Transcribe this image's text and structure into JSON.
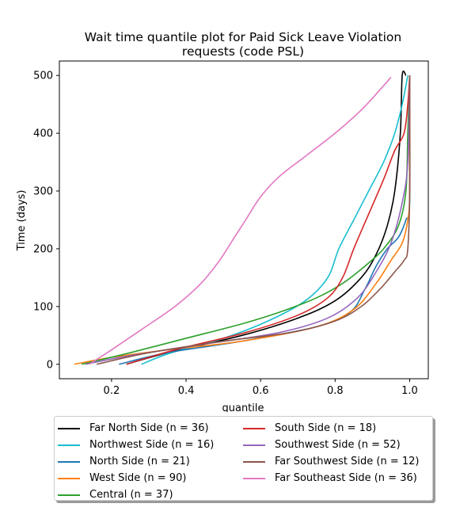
{
  "chart_data": {
    "type": "line",
    "title_line1": "Wait time quantile plot for Paid Sick Leave Violation",
    "title_line2": "requests (code PSL)",
    "xlabel": "quantile",
    "ylabel": "Time (days)",
    "xlim": [
      0.06,
      1.05
    ],
    "ylim": [
      -25,
      525
    ],
    "xticks": [
      0.2,
      0.4,
      0.6,
      0.8,
      1.0
    ],
    "xtick_labels": [
      "0.2",
      "0.4",
      "0.6",
      "0.8",
      "1.0"
    ],
    "yticks": [
      0,
      100,
      200,
      300,
      400,
      500
    ],
    "ytick_labels": [
      "0",
      "100",
      "200",
      "300",
      "400",
      "500"
    ],
    "grid": false,
    "legend_placement": "below plot, two columns",
    "series": [
      {
        "name": "Far North Side (n = 36)",
        "color": "#000000",
        "points": [
          [
            0.24,
            0
          ],
          [
            0.35,
            20
          ],
          [
            0.55,
            50
          ],
          [
            0.7,
            80
          ],
          [
            0.8,
            110
          ],
          [
            0.87,
            150
          ],
          [
            0.91,
            190
          ],
          [
            0.94,
            240
          ],
          [
            0.96,
            300
          ],
          [
            0.975,
            400
          ],
          [
            0.98,
            500
          ],
          [
            0.99,
            500
          ]
        ]
      },
      {
        "name": "Northwest Side (n = 16)",
        "color": "#17becf",
        "points": [
          [
            0.28,
            0
          ],
          [
            0.36,
            20
          ],
          [
            0.5,
            45
          ],
          [
            0.62,
            75
          ],
          [
            0.72,
            110
          ],
          [
            0.78,
            150
          ],
          [
            0.81,
            200
          ],
          [
            0.85,
            250
          ],
          [
            0.89,
            300
          ],
          [
            0.93,
            350
          ],
          [
            0.96,
            400
          ],
          [
            0.98,
            450
          ],
          [
            0.995,
            500
          ]
        ]
      },
      {
        "name": "North Side (n = 21)",
        "color": "#1f77b4",
        "points": [
          [
            0.22,
            0
          ],
          [
            0.35,
            20
          ],
          [
            0.55,
            40
          ],
          [
            0.75,
            65
          ],
          [
            0.84,
            90
          ],
          [
            0.88,
            130
          ],
          [
            0.91,
            170
          ],
          [
            0.94,
            200
          ],
          [
            0.97,
            220
          ],
          [
            0.99,
            250
          ],
          [
            1.0,
            280
          ],
          [
            1.0,
            500
          ]
        ]
      },
      {
        "name": "West Side (n = 90)",
        "color": "#ff7f0e",
        "points": [
          [
            0.1,
            0
          ],
          [
            0.2,
            12
          ],
          [
            0.35,
            25
          ],
          [
            0.55,
            40
          ],
          [
            0.75,
            65
          ],
          [
            0.85,
            95
          ],
          [
            0.91,
            140
          ],
          [
            0.95,
            180
          ],
          [
            0.98,
            210
          ],
          [
            0.995,
            250
          ],
          [
            1.0,
            300
          ],
          [
            1.0,
            500
          ]
        ]
      },
      {
        "name": "Central (n = 37)",
        "color": "#2ca02c",
        "points": [
          [
            0.12,
            0
          ],
          [
            0.25,
            20
          ],
          [
            0.4,
            45
          ],
          [
            0.55,
            70
          ],
          [
            0.65,
            90
          ],
          [
            0.75,
            115
          ],
          [
            0.82,
            140
          ],
          [
            0.88,
            170
          ],
          [
            0.93,
            200
          ],
          [
            0.97,
            240
          ],
          [
            0.99,
            300
          ],
          [
            0.995,
            400
          ],
          [
            1.0,
            500
          ]
        ]
      },
      {
        "name": "South Side (n = 18)",
        "color": "#d62728",
        "points": [
          [
            0.24,
            0
          ],
          [
            0.37,
            25
          ],
          [
            0.56,
            55
          ],
          [
            0.7,
            85
          ],
          [
            0.78,
            115
          ],
          [
            0.82,
            150
          ],
          [
            0.85,
            200
          ],
          [
            0.89,
            260
          ],
          [
            0.93,
            320
          ],
          [
            0.96,
            370
          ],
          [
            0.985,
            400
          ],
          [
            0.995,
            450
          ],
          [
            1.0,
            500
          ]
        ]
      },
      {
        "name": "Southwest Side (n = 52)",
        "color": "#9467bd",
        "points": [
          [
            0.13,
            0
          ],
          [
            0.25,
            15
          ],
          [
            0.45,
            35
          ],
          [
            0.65,
            55
          ],
          [
            0.78,
            80
          ],
          [
            0.86,
            115
          ],
          [
            0.91,
            160
          ],
          [
            0.95,
            210
          ],
          [
            0.98,
            280
          ],
          [
            0.995,
            350
          ],
          [
            1.0,
            500
          ]
        ]
      },
      {
        "name": "Far Southwest Side (n = 12)",
        "color": "#8c564b",
        "points": [
          [
            0.16,
            0
          ],
          [
            0.3,
            20
          ],
          [
            0.5,
            40
          ],
          [
            0.68,
            55
          ],
          [
            0.8,
            75
          ],
          [
            0.87,
            100
          ],
          [
            0.92,
            130
          ],
          [
            0.96,
            160
          ],
          [
            0.985,
            180
          ],
          [
            0.995,
            200
          ],
          [
            1.0,
            300
          ],
          [
            1.0,
            500
          ]
        ]
      },
      {
        "name": "Far Southeast Side (n = 36)",
        "color": "#e377c2",
        "points": [
          [
            0.14,
            0
          ],
          [
            0.2,
            25
          ],
          [
            0.28,
            60
          ],
          [
            0.37,
            100
          ],
          [
            0.44,
            140
          ],
          [
            0.49,
            180
          ],
          [
            0.53,
            220
          ],
          [
            0.56,
            250
          ],
          [
            0.6,
            290
          ],
          [
            0.65,
            325
          ],
          [
            0.72,
            360
          ],
          [
            0.8,
            400
          ],
          [
            0.87,
            440
          ],
          [
            0.92,
            475
          ],
          [
            0.95,
            497
          ]
        ]
      }
    ]
  }
}
